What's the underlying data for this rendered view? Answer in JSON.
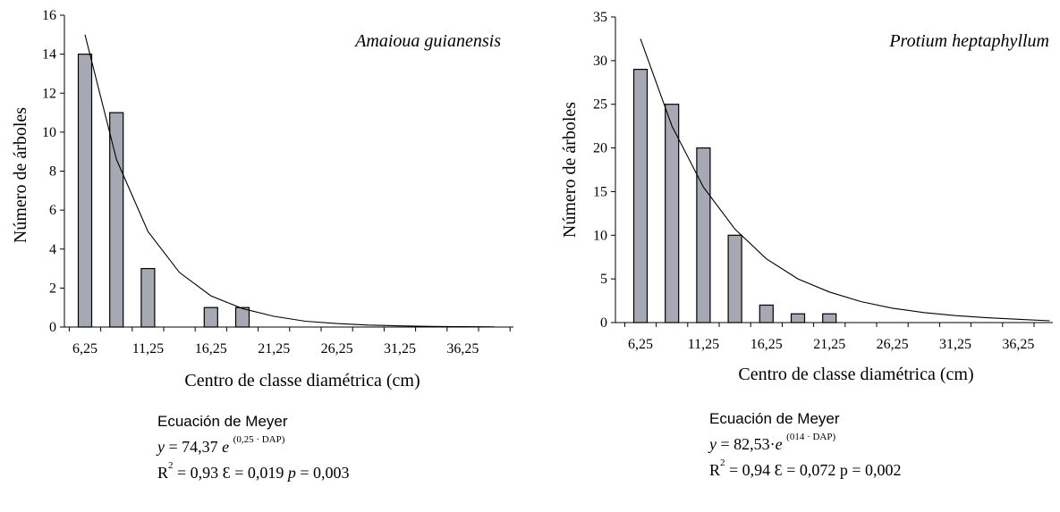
{
  "chart_data": [
    {
      "type": "bar",
      "title": "Amaioua guianensis",
      "xlabel": "Centro de classe diamétrica (cm)",
      "ylabel": "Número de árboles",
      "ylim": [
        0,
        16
      ],
      "yticks": [
        "0",
        "2",
        "4",
        "6",
        "8",
        "10",
        "12",
        "14",
        "16"
      ],
      "xticks": [
        "6,25",
        "11,25",
        "16,25",
        "21,25",
        "26,25",
        "31,25",
        "36,25"
      ],
      "categories": [
        "6,25",
        "8,75",
        "11,25",
        "13,75",
        "16,25",
        "18,75",
        "21,25",
        "23,75",
        "26,25",
        "28,75",
        "31,25",
        "33,75",
        "36,25",
        "38,75"
      ],
      "values": [
        14,
        11,
        3,
        0,
        1,
        1,
        0,
        0,
        0,
        0,
        0,
        0,
        0,
        0
      ],
      "fit_curve": {
        "x": [
          6.25,
          8.75,
          11.25,
          13.75,
          16.25,
          18.75,
          21.25,
          23.75,
          26.25,
          28.75,
          31.25,
          33.75,
          36.25,
          38.75
        ],
        "y": [
          15.0,
          8.6,
          4.9,
          2.8,
          1.6,
          0.95,
          0.55,
          0.3,
          0.18,
          0.1,
          0.06,
          0.03,
          0.02,
          0.01
        ]
      },
      "equation": {
        "title": "Ecuación de Meyer",
        "y_var": "y",
        "eq_prefix": " = 74,37 ",
        "eq_base": "e",
        "eq_exponent": "(0,25 · DAP)",
        "r2_label": "R",
        "r2_sup": "2",
        "r2_rest": " = 0,93 ",
        "epsilon_sym": "Ɛ",
        "epsilon_rest": " = 0,019 ",
        "p_var": "p",
        "p_rest": " = 0,003"
      }
    },
    {
      "type": "bar",
      "title": "Protium heptaphyllum",
      "xlabel": "Centro de classe diamétrica (cm)",
      "ylabel": "Número de árboles",
      "ylim": [
        0,
        35
      ],
      "yticks": [
        "0",
        "5",
        "10",
        "15",
        "20",
        "25",
        "30",
        "35"
      ],
      "xticks": [
        "6,25",
        "11,25",
        "16,25",
        "21,25",
        "26,25",
        "31,25",
        "36,25"
      ],
      "categories": [
        "6,25",
        "8,75",
        "11,25",
        "13,75",
        "16,25",
        "18,75",
        "21,25",
        "23,75",
        "26,25",
        "28,75",
        "31,25",
        "33,75",
        "36,25",
        "38,75"
      ],
      "values": [
        29,
        25,
        20,
        10,
        2,
        1,
        1,
        0,
        0,
        0,
        0,
        0,
        0,
        0
      ],
      "fit_curve": {
        "x": [
          6.25,
          8.75,
          11.25,
          13.75,
          16.25,
          18.75,
          21.25,
          23.75,
          26.25,
          28.75,
          31.25,
          33.75,
          36.25,
          38.75
        ],
        "y": [
          32.5,
          22.5,
          15.5,
          10.7,
          7.3,
          5.0,
          3.5,
          2.4,
          1.65,
          1.15,
          0.8,
          0.55,
          0.38,
          0.2
        ]
      },
      "equation": {
        "title": "Ecuación de Meyer",
        "y_var": "y",
        "eq_prefix": " = 82,53·",
        "eq_base": "e",
        "eq_exponent": "(014 · DAP)",
        "r2_label": "R",
        "r2_sup": "2",
        "r2_rest": " = 0,94 ",
        "epsilon_sym": "Ɛ",
        "epsilon_rest": " = 0,072 p = 0,002",
        "p_var": "",
        "p_rest": ""
      }
    }
  ]
}
